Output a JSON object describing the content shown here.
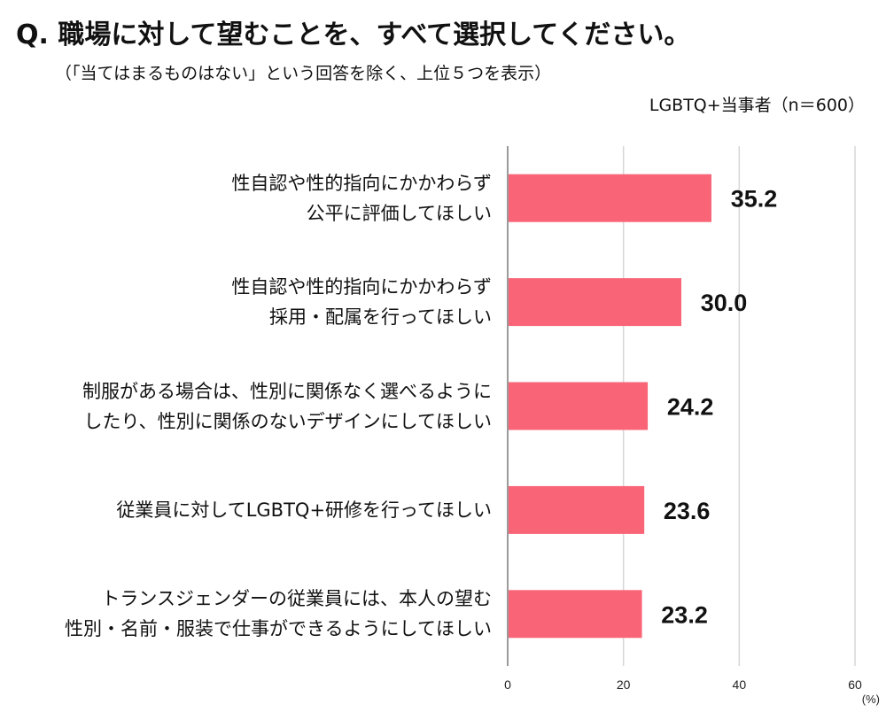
{
  "title": "Q. 職場に対して望むことを、すべて選択してください。",
  "subtitle": "（「当てはまるものはない」という回答を除く、上位５つを表示）",
  "sample_note": "LGBTQ+当事者（n＝600）",
  "colors": {
    "bar": "#f96477",
    "grid": "#d6d6d6",
    "axis": "#9a9a9a"
  },
  "chart_data": {
    "type": "bar",
    "orientation": "horizontal",
    "categories": [
      [
        "性自認や性的指向にかかわらず",
        "公平に評価してほしい"
      ],
      [
        "性自認や性的指向にかかわらず",
        "採用・配属を行ってほしい"
      ],
      [
        "制服がある場合は、性別に関係なく選べるように",
        "したり、性別に関係のないデザインにしてほしい"
      ],
      [
        "従業員に対してLGBTQ+研修を行ってほしい"
      ],
      [
        "トランスジェンダーの従業員には、本人の望む",
        "性別・名前・服装で仕事ができるようにしてほしい"
      ]
    ],
    "values": [
      35.2,
      30.0,
      24.2,
      23.6,
      23.2
    ],
    "value_labels": [
      "35.2",
      "30.0",
      "24.2",
      "23.6",
      "23.2"
    ],
    "xlim": [
      0,
      60
    ],
    "xticks": [
      "0",
      "20",
      "40",
      "60"
    ],
    "unit_label": "(%)",
    "grid": true
  }
}
